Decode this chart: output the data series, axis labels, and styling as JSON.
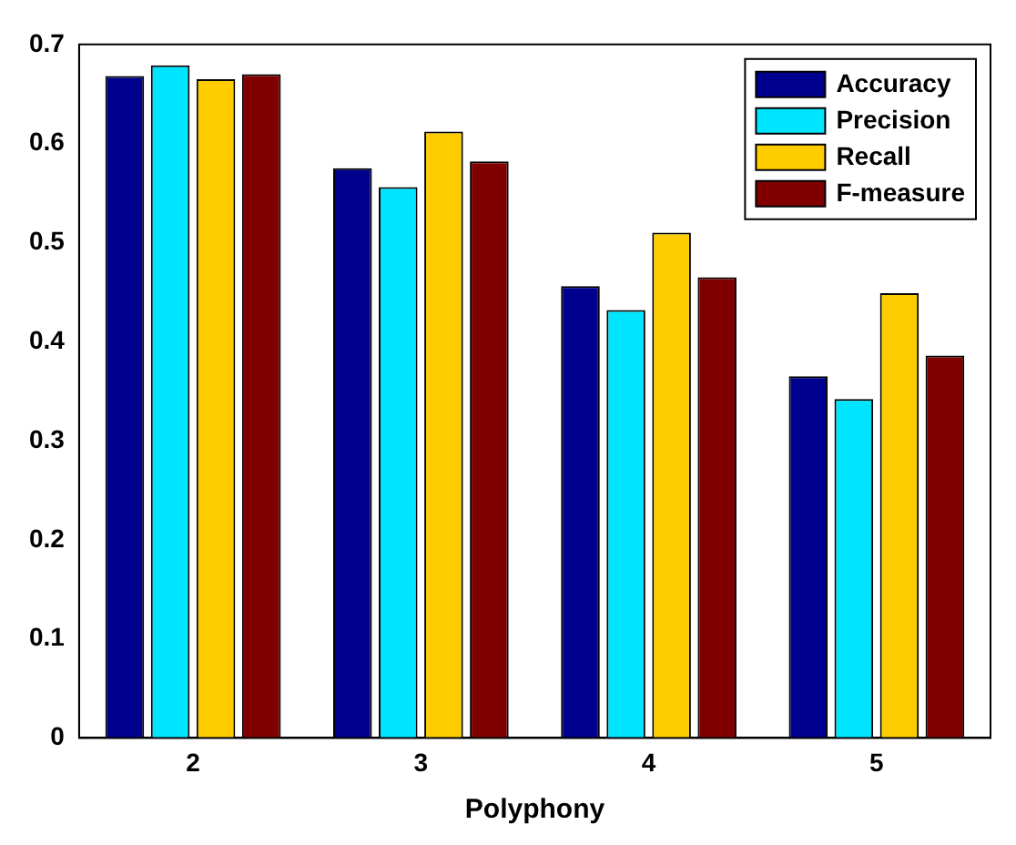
{
  "chart_data": {
    "type": "bar",
    "xlabel": "Polyphony",
    "categories": [
      "2",
      "3",
      "4",
      "5"
    ],
    "series": [
      {
        "name": "Accuracy",
        "color": "#00008f",
        "values": [
          0.668,
          0.575,
          0.456,
          0.365
        ]
      },
      {
        "name": "Precision",
        "color": "#00e5ff",
        "values": [
          0.679,
          0.556,
          0.432,
          0.342
        ]
      },
      {
        "name": "Recall",
        "color": "#ffcc00",
        "values": [
          0.665,
          0.612,
          0.51,
          0.449
        ]
      },
      {
        "name": "F-measure",
        "color": "#800000",
        "values": [
          0.67,
          0.582,
          0.465,
          0.386
        ]
      }
    ],
    "ylim": [
      0,
      0.7
    ],
    "yticks": [
      0,
      0.1,
      0.2,
      0.3,
      0.4,
      0.5,
      0.6,
      0.7
    ],
    "grid": false,
    "legend": "top right"
  }
}
